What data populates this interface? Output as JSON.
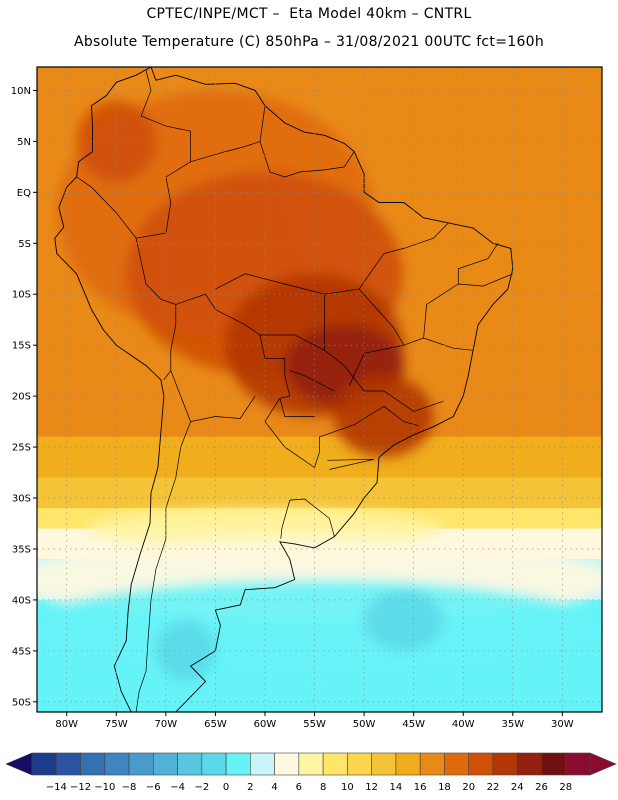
{
  "header": {
    "line1": "CPTEC/INPE/MCT –  Eta Model 40km – CNTRL",
    "line2": "Absolute Temperature (C) 850hPa – 31/08/2021 00UTC fct=160h"
  },
  "map": {
    "lat_labels": [
      "10N",
      "5N",
      "EQ",
      "5S",
      "10S",
      "15S",
      "20S",
      "25S",
      "30S",
      "35S",
      "40S",
      "45S",
      "50S"
    ],
    "lat_values": [
      10,
      5,
      0,
      -5,
      -10,
      -15,
      -20,
      -25,
      -30,
      -35,
      -40,
      -45,
      -50
    ],
    "lon_labels": [
      "80W",
      "75W",
      "70W",
      "65W",
      "60W",
      "55W",
      "50W",
      "45W",
      "40W",
      "35W",
      "30W"
    ],
    "lon_values": [
      -80,
      -75,
      -70,
      -65,
      -60,
      -55,
      -50,
      -45,
      -40,
      -35,
      -30
    ],
    "lat_range": [
      -51,
      12.3
    ],
    "lon_range": [
      -83,
      -26
    ],
    "grid": "dotted",
    "field_regions": [
      {
        "level": 16,
        "lat": 0,
        "lon": -40,
        "r_lat": 14,
        "r_lon": 18
      },
      {
        "level": 18,
        "lat": -2,
        "lon": -65,
        "r_lat": 12,
        "r_lon": 16
      },
      {
        "level": 20,
        "lat": -8,
        "lon": -60,
        "r_lat": 10,
        "r_lon": 14
      },
      {
        "level": 22,
        "lat": -15,
        "lon": -55,
        "r_lat": 7,
        "r_lon": 9
      },
      {
        "level": 24,
        "lat": -17,
        "lon": -52,
        "r_lat": 4,
        "r_lon": 6
      },
      {
        "level": 22,
        "lat": -22,
        "lon": -48,
        "r_lat": 4,
        "r_lon": 5
      },
      {
        "level": 20,
        "lat": 5,
        "lon": -75,
        "r_lat": 4,
        "r_lon": 4
      },
      {
        "level": 6,
        "lat": -33,
        "lon": -60,
        "r_lat": 2,
        "r_lon": 18
      },
      {
        "level": 4,
        "lat": -38,
        "lon": -55,
        "r_lat": 4,
        "r_lon": 30
      },
      {
        "level": 0,
        "lat": -43,
        "lon": -55,
        "r_lat": 5,
        "r_lon": 30
      },
      {
        "level": -2,
        "lat": -42,
        "lon": -46,
        "r_lat": 3,
        "r_lon": 4
      },
      {
        "level": -2,
        "lat": -45,
        "lon": -68,
        "r_lat": 3,
        "r_lon": 3
      }
    ]
  },
  "colorbar": {
    "labels": [
      "−14",
      "−12",
      "−10",
      "−8",
      "−6",
      "−4",
      "−2",
      "0",
      "2",
      "4",
      "6",
      "8",
      "10",
      "12",
      "14",
      "16",
      "18",
      "20",
      "22",
      "24",
      "26",
      "28"
    ],
    "values": [
      -14,
      -12,
      -10,
      -8,
      -6,
      -4,
      -2,
      0,
      2,
      4,
      6,
      8,
      10,
      12,
      14,
      16,
      18,
      20,
      22,
      24,
      26,
      28
    ],
    "colors": [
      "#1e3c8c",
      "#2b55a3",
      "#3470b2",
      "#3f85bf",
      "#4a9bcb",
      "#52b1d6",
      "#58c6df",
      "#5bd9e9",
      "#66f3f7",
      "#c9f5f8",
      "#fff8df",
      "#fff4a3",
      "#ffe66a",
      "#fbd54b",
      "#f4c337",
      "#f0ad1c",
      "#e98a18",
      "#e06a0e",
      "#cf5007",
      "#b33605",
      "#92200c",
      "#6e1210",
      "#8a0a30",
      "#150d63"
    ],
    "under_color": "#150d63",
    "over_color": "#8a0a30"
  }
}
